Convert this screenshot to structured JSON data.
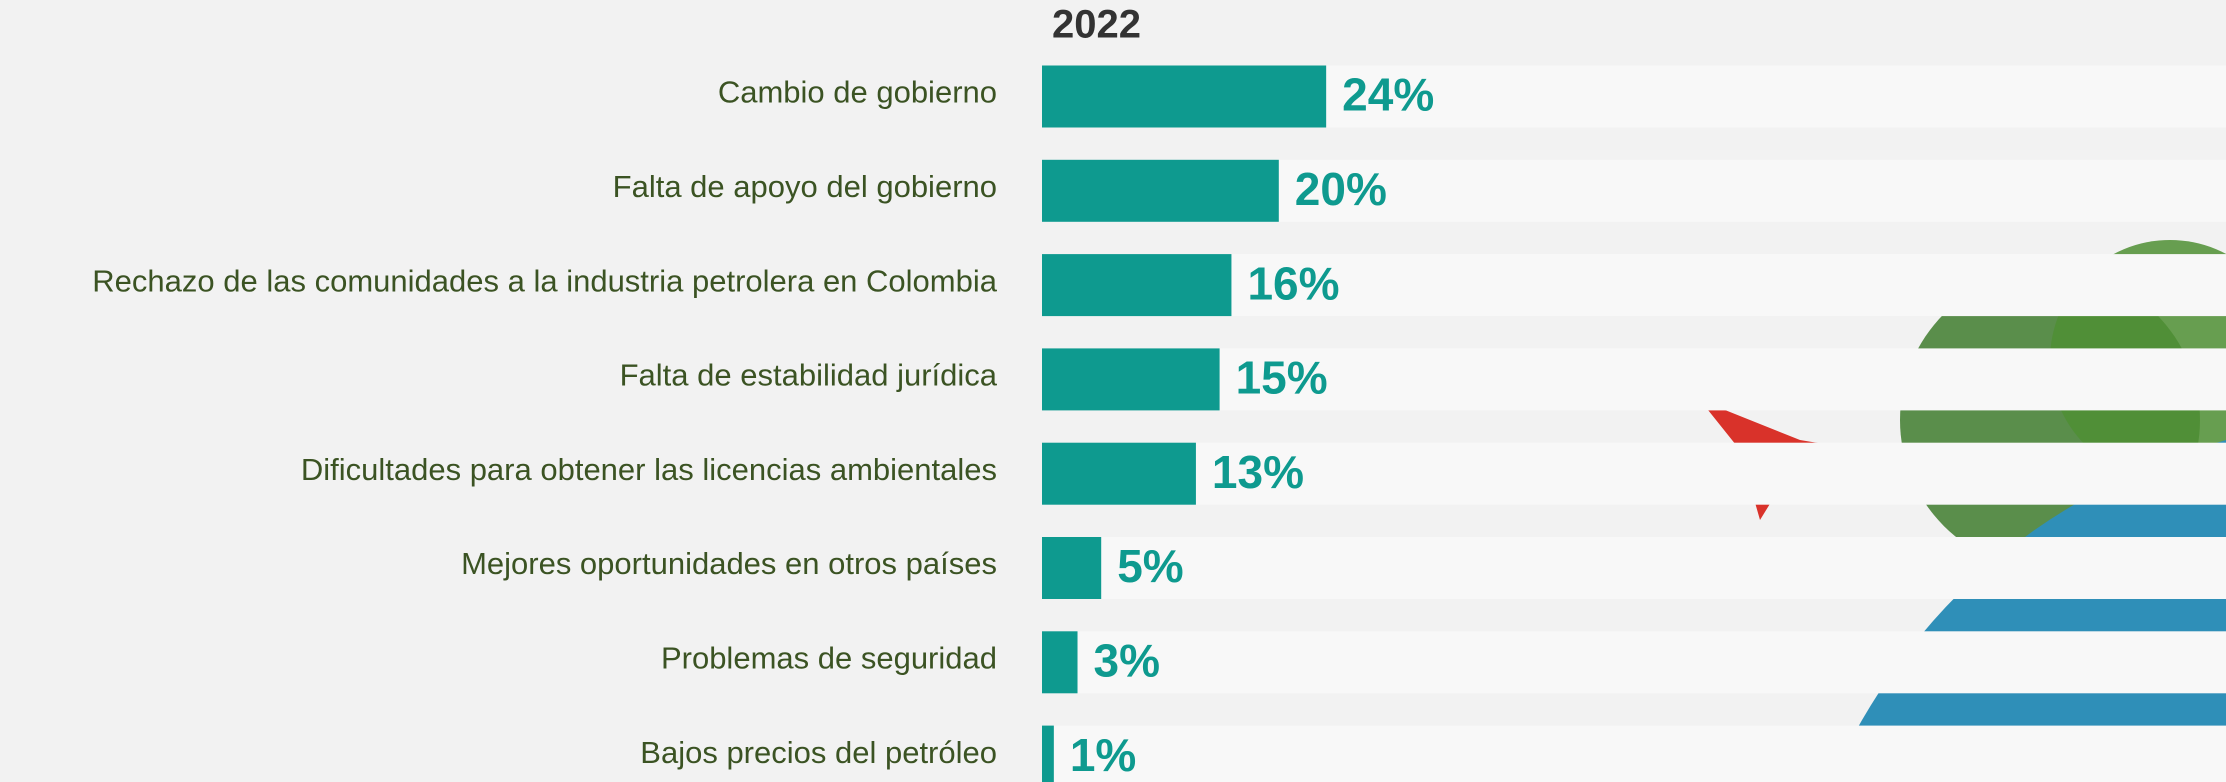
{
  "chart_data": {
    "type": "bar",
    "orientation": "horizontal",
    "title": "2022",
    "categories": [
      "Cambio de gobierno",
      "Falta de apoyo del gobierno",
      "Rechazo de las comunidades a la industria petrolera en Colombia",
      "Falta de estabilidad jurídica",
      "Dificultades para obtener las licencias ambientales",
      "Mejores oportunidades en otros países",
      "Problemas de seguridad",
      "Bajos precios del petróleo"
    ],
    "values": [
      24,
      20,
      16,
      15,
      13,
      5,
      3,
      1
    ],
    "value_labels": [
      "24%",
      "20%",
      "16%",
      "15%",
      "13%",
      "5%",
      "3%",
      "1%"
    ],
    "color": "#0e9a8f",
    "xlim": [
      0,
      100
    ]
  }
}
